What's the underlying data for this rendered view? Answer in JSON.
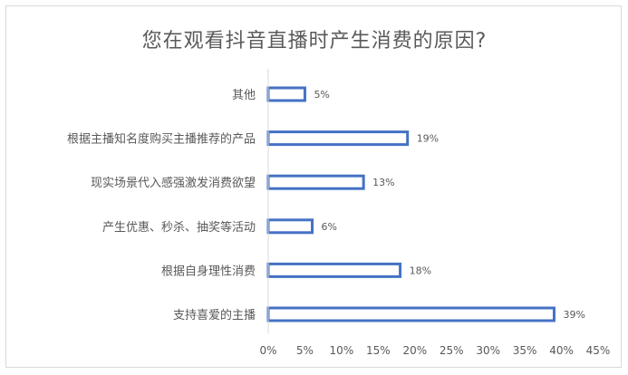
{
  "chart_data": {
    "type": "bar",
    "orientation": "horizontal",
    "title": "您在观看抖音直播时产生消费的原因?",
    "categories": [
      "其他",
      "根据主播知名度购买主播推荐的产品",
      "现实场景代入感强激发消费欲望",
      "产生优惠、秒杀、抽奖等活动",
      "根据自身理性消费",
      "支持喜爱的主播"
    ],
    "values": [
      5,
      19,
      13,
      6,
      18,
      39
    ],
    "value_labels": [
      "5%",
      "19%",
      "13%",
      "6%",
      "18%",
      "39%"
    ],
    "xlim": [
      0,
      45
    ],
    "x_ticks": [
      "0%",
      "5%",
      "10%",
      "15%",
      "20%",
      "25%",
      "30%",
      "35%",
      "40%",
      "45%"
    ],
    "grid": false,
    "legend": "none",
    "bar_color": "#4472c4"
  }
}
